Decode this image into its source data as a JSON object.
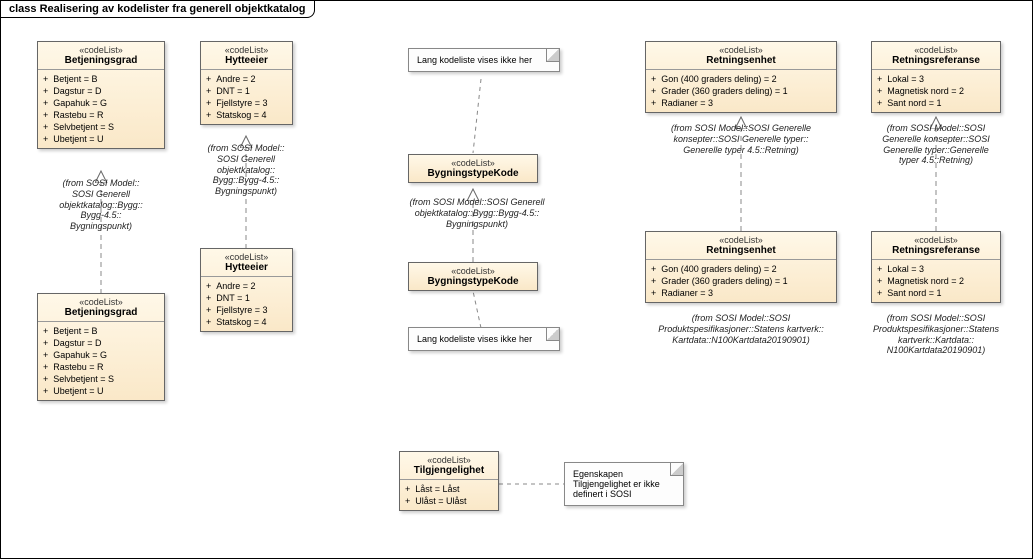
{
  "frame_title": "class Realisering av kodelister fra generell objektkatalog",
  "stereotype": "«codeList»",
  "boxes": {
    "betj1": {
      "name": "Betjeningsgrad",
      "attrs": [
        "Betjent = B",
        "Dagstur = D",
        "Gapahuk = G",
        "Rastebu = R",
        "Selvbetjent = S",
        "Ubetjent = U"
      ]
    },
    "betj2": {
      "name": "Betjeningsgrad",
      "attrs": [
        "Betjent = B",
        "Dagstur = D",
        "Gapahuk = G",
        "Rastebu = R",
        "Selvbetjent = S",
        "Ubetjent = U"
      ]
    },
    "hytte1": {
      "name": "Hytteeier",
      "attrs": [
        "Andre = 2",
        "DNT = 1",
        "Fjellstyre = 3",
        "Statskog = 4"
      ]
    },
    "hytte2": {
      "name": "Hytteeier",
      "attrs": [
        "Andre = 2",
        "DNT = 1",
        "Fjellstyre = 3",
        "Statskog = 4"
      ]
    },
    "bygn1": {
      "name": "BygningstypeKode"
    },
    "bygn2": {
      "name": "BygningstypeKode"
    },
    "retn1": {
      "name": "Retningsenhet",
      "attrs": [
        "Gon (400 graders deling) = 2",
        "Grader (360 graders deling) = 1",
        "Radianer = 3"
      ]
    },
    "retn2": {
      "name": "Retningsenhet",
      "attrs": [
        "Gon (400 graders deling) = 2",
        "Grader (360 graders deling) = 1",
        "Radianer = 3"
      ]
    },
    "retnref1": {
      "name": "Retningsreferanse",
      "attrs": [
        "Lokal = 3",
        "Magnetisk nord = 2",
        "Sant nord = 1"
      ]
    },
    "retnref2": {
      "name": "Retningsreferanse",
      "attrs": [
        "Lokal = 3",
        "Magnetisk nord = 2",
        "Sant nord = 1"
      ]
    },
    "tilg": {
      "name": "Tilgjengelighet",
      "attrs": [
        "Låst = Låst",
        "Ulåst = Ulåst"
      ]
    }
  },
  "origins": {
    "betj": "(from SOSI Model::\nSOSI Generell\nobjektkatalog::Bygg::\nBygg-4.5::\nBygningspunkt)",
    "hytte": "(from SOSI Model::\nSOSI Generell\nobjektkatalog::\nBygg::Bygg-4.5::\nBygningspunkt)",
    "bygn": "(from SOSI Model::SOSI Generell\nobjektkatalog::Bygg::Bygg-4.5::\nBygningspunkt)",
    "retn1": "(from SOSI Model::SOSI Generelle\nkonsepter::SOSI Generelle typer::\nGenerelle typer 4.5::Retning)",
    "retn2": "(from SOSI Model::SOSI\nProduktspesifikasjoner::Statens kartverk::\nKartdata::N100Kartdata20190901)",
    "retnref1": "(from SOSI Model::SOSI\nGenerelle konsepter::SOSI\nGenerelle typer::Generelle\ntyper 4.5::Retning)",
    "retnref2": "(from SOSI Model::SOSI\nProduktspesifikasjoner::Statens\nkartverk::Kartdata::\nN100Kartdata20190901)"
  },
  "notes": {
    "n1": "Lang kodeliste vises ikke her",
    "n2": "Lang kodeliste vises ikke her",
    "n3": "Egenskapen\nTilgjengelighet er ikke\ndefinert i SOSI"
  }
}
